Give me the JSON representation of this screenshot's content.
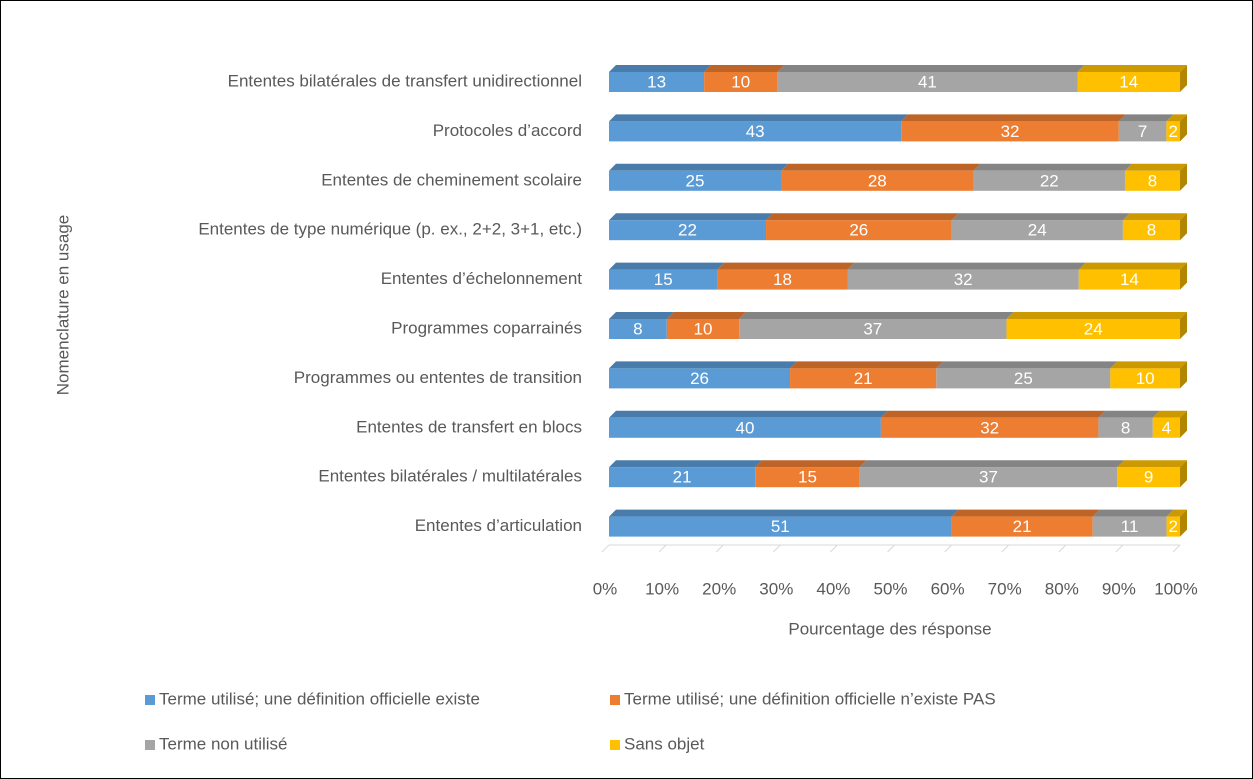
{
  "chart_data": {
    "type": "bar",
    "orientation": "horizontal",
    "stacked": "percent",
    "y_axis_label": "Nomenclature en usage",
    "x_axis_label": "Pourcentage des résponse",
    "categories": [
      "Ententes bilatérales de transfert unidirectionnel",
      "Protocoles d’accord",
      "Ententes de cheminement scolaire",
      "Ententes de type numérique (p. ex., 2+2, 3+1, etc.)",
      "Ententes d’échelonnement",
      "Programmes coparrainés",
      "Programmes ou ententes de transition",
      "Ententes de transfert en blocs",
      "Ententes bilatérales / multilatérales",
      "Ententes d’articulation"
    ],
    "series": [
      {
        "name": "Terme utilisé; une définition officielle existe",
        "color": "#5b9bd5",
        "values": [
          13,
          43,
          25,
          22,
          15,
          8,
          26,
          40,
          21,
          51
        ]
      },
      {
        "name": "Terme utilisé; une définition officielle n’existe PAS",
        "color": "#ed7d31",
        "values": [
          10,
          32,
          28,
          26,
          18,
          10,
          21,
          32,
          15,
          21
        ]
      },
      {
        "name": "Terme non utilisé",
        "color": "#a5a5a5",
        "values": [
          41,
          7,
          22,
          24,
          32,
          37,
          25,
          8,
          37,
          11
        ]
      },
      {
        "name": "Sans objet",
        "color": "#ffc000",
        "values": [
          14,
          2,
          8,
          8,
          14,
          24,
          10,
          4,
          9,
          2
        ]
      }
    ],
    "xlim": [
      0,
      100
    ],
    "xticks": [
      {
        "value": 0,
        "label": "0%"
      },
      {
        "value": 10,
        "label": "10%"
      },
      {
        "value": 20,
        "label": "20%"
      },
      {
        "value": 30,
        "label": "30%"
      },
      {
        "value": 40,
        "label": "40%"
      },
      {
        "value": 50,
        "label": "50%"
      },
      {
        "value": 60,
        "label": "60%"
      },
      {
        "value": 70,
        "label": "70%"
      },
      {
        "value": 80,
        "label": "80%"
      },
      {
        "value": 90,
        "label": "90%"
      },
      {
        "value": 100,
        "label": "100%"
      }
    ],
    "legend": "bottom"
  }
}
